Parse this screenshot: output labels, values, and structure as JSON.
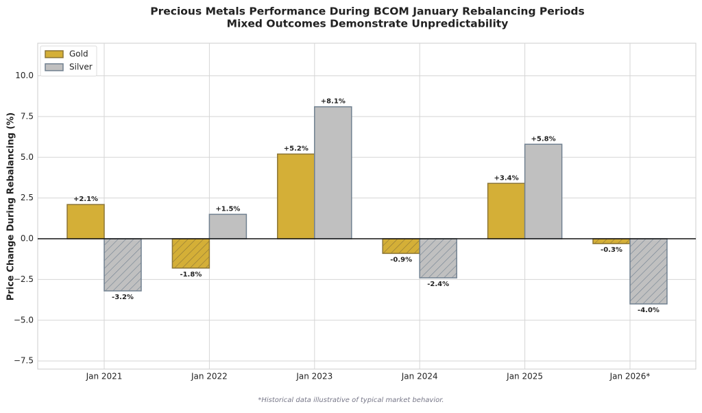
{
  "chart_data": {
    "type": "bar",
    "title": "Precious Metals Performance During BCOM January Rebalancing Periods",
    "subtitle": "Mixed Outcomes Demonstrate Unpredictability",
    "y_label": "Price Change During Rebalancing (%)",
    "footnote": "*Historical data illustrative of typical market behavior.",
    "categories": [
      "Jan 2021",
      "Jan 2022",
      "Jan 2023",
      "Jan 2024",
      "Jan 2025",
      "Jan 2026*"
    ],
    "series": [
      {
        "name": "Gold",
        "color": "#d4af37",
        "edgecolor": "#8b7536",
        "values": [
          2.1,
          -1.8,
          5.2,
          -0.9,
          3.4,
          -0.3
        ],
        "value_labels": [
          "+2.1%",
          "-1.8%",
          "+5.2%",
          "-0.9%",
          "+3.4%",
          "-0.3%"
        ]
      },
      {
        "name": "Silver",
        "color": "#c0c0c0",
        "edgecolor": "#708090",
        "values": [
          -3.2,
          1.5,
          8.1,
          -2.4,
          5.8,
          -4.0
        ],
        "value_labels": [
          "-3.2%",
          "+1.5%",
          "+8.1%",
          "-2.4%",
          "+5.8%",
          "-4.0%"
        ]
      }
    ],
    "ylim": [
      -8,
      12
    ],
    "yticks": [
      {
        "value": -7.5,
        "label": "−7.5"
      },
      {
        "value": -5,
        "label": "−5.0"
      },
      {
        "value": -2.5,
        "label": "−2.5"
      },
      {
        "value": 0,
        "label": "0.0"
      },
      2.5,
      {
        "value": 5,
        "label": "5.0"
      },
      7.5,
      {
        "value": 10,
        "label": "10.0"
      }
    ],
    "grid": true,
    "legend": "upper left"
  }
}
